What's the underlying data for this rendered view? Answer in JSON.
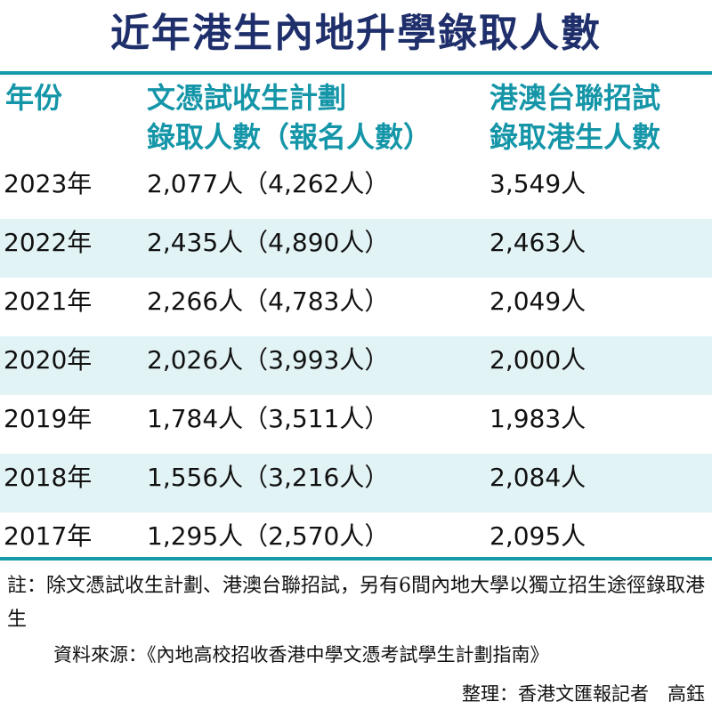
{
  "chart_data": {
    "type": "table",
    "title": "近年港生內地升學錄取人數",
    "headers": [
      [
        "年份"
      ],
      [
        "文憑試收生計劃",
        "錄取人數（報名人數）"
      ],
      [
        "港澳台聯招試",
        "錄取港生人數"
      ]
    ],
    "rows": [
      {
        "year": "2023年",
        "dse": "2,077人（4,262人）",
        "joint": "3,549人",
        "year_value": 2023,
        "dse_admitted": 2077,
        "dse_applied": 4262,
        "joint_admitted": 3549
      },
      {
        "year": "2022年",
        "dse": "2,435人（4,890人）",
        "joint": "2,463人",
        "year_value": 2022,
        "dse_admitted": 2435,
        "dse_applied": 4890,
        "joint_admitted": 2463
      },
      {
        "year": "2021年",
        "dse": "2,266人（4,783人）",
        "joint": "2,049人",
        "year_value": 2021,
        "dse_admitted": 2266,
        "dse_applied": 4783,
        "joint_admitted": 2049
      },
      {
        "year": "2020年",
        "dse": "2,026人（3,993人）",
        "joint": "2,000人",
        "year_value": 2020,
        "dse_admitted": 2026,
        "dse_applied": 3993,
        "joint_admitted": 2000
      },
      {
        "year": "2019年",
        "dse": "1,784人（3,511人）",
        "joint": "1,983人",
        "year_value": 2019,
        "dse_admitted": 1784,
        "dse_applied": 3511,
        "joint_admitted": 1983
      },
      {
        "year": "2018年",
        "dse": "1,556人（3,216人）",
        "joint": "2,084人",
        "year_value": 2018,
        "dse_admitted": 1556,
        "dse_applied": 3216,
        "joint_admitted": 2084
      },
      {
        "year": "2017年",
        "dse": "1,295人（2,570人）",
        "joint": "2,095人",
        "year_value": 2017,
        "dse_admitted": 1295,
        "dse_applied": 2570,
        "joint_admitted": 2095
      }
    ]
  },
  "footer": {
    "note": "註：除文憑試收生計劃、港澳台聯招試，另有6間內地大學以獨立招生途徑錄取港生",
    "source": "資料來源：《內地高校招收香港中學文憑考試學生計劃指南》",
    "credit": "整理：香港文匯報記者　高鈺"
  },
  "colors": {
    "title": "#1f2f6b",
    "header": "#1596a8",
    "rule": "#169bab",
    "row_shade": "#e2f3f6",
    "text": "#111111"
  }
}
